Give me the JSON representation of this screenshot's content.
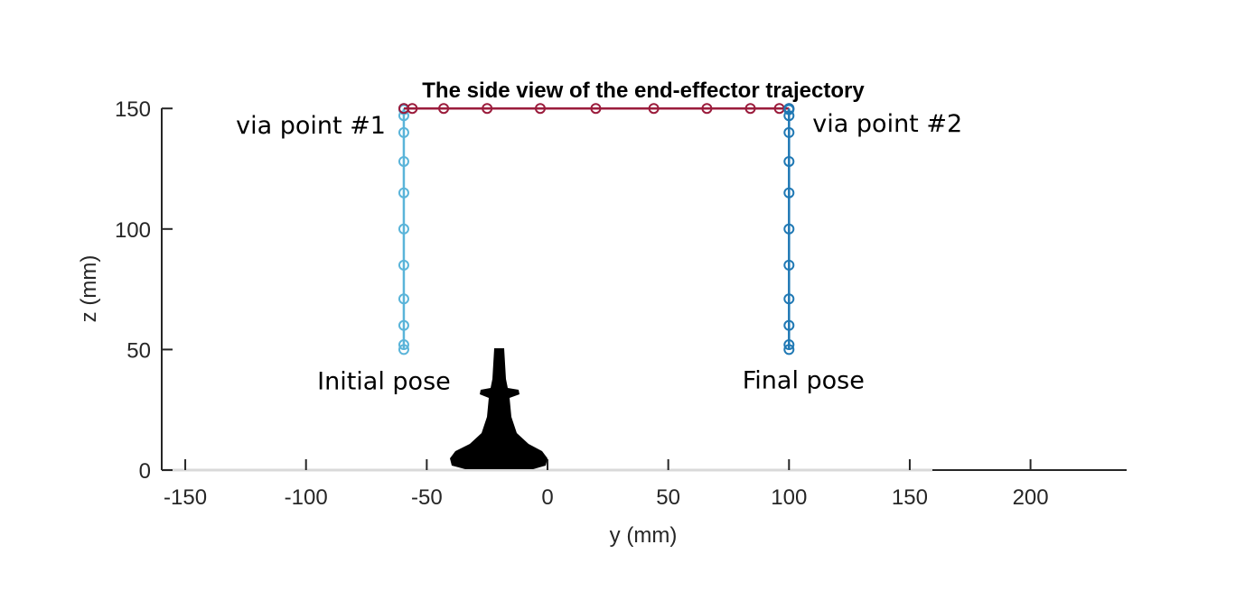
{
  "chart_data": {
    "type": "line",
    "title": "The side view of the end-effector trajectory",
    "xlabel": "y (mm)",
    "ylabel": "z (mm)",
    "xlim": [
      -160,
      240
    ],
    "ylim": [
      0,
      150
    ],
    "xticks": [
      -150,
      -100,
      -50,
      0,
      50,
      100,
      150,
      200
    ],
    "yticks": [
      0,
      50,
      100,
      150
    ],
    "grid": false,
    "series": [
      {
        "color": "#5ab4d9",
        "x": [
          -59.5,
          -59.5,
          -59.5,
          -59.5,
          -59.5,
          -59.5,
          -59.5,
          -59.5,
          -59.5,
          -59.5,
          -59.5,
          -59.5
        ],
        "y": [
          50,
          52,
          60,
          71,
          85,
          100,
          115,
          128,
          140,
          147,
          149.5,
          150
        ]
      },
      {
        "color": "#9b1c3c",
        "x": [
          -59.5,
          -56,
          -43,
          -25,
          -3,
          20,
          44,
          66,
          84,
          96,
          100
        ],
        "y": [
          150,
          150,
          150,
          150,
          150,
          150,
          150,
          150,
          150,
          150,
          150
        ]
      },
      {
        "color": "#1f78b4",
        "x": [
          100,
          100,
          100,
          100,
          100,
          100,
          100,
          100,
          100,
          100,
          100,
          100
        ],
        "y": [
          150,
          149.5,
          147,
          140,
          128,
          115,
          100,
          85,
          71,
          60,
          52,
          50
        ]
      }
    ],
    "annotations": [
      {
        "text": "via point #1",
        "x": -59.5,
        "y": 150
      },
      {
        "text": "via point #2",
        "x": 100,
        "y": 150
      },
      {
        "text": "Initial pose",
        "x": -59.5,
        "y": 50
      },
      {
        "text": "Final pose",
        "x": 100,
        "y": 50
      }
    ]
  }
}
